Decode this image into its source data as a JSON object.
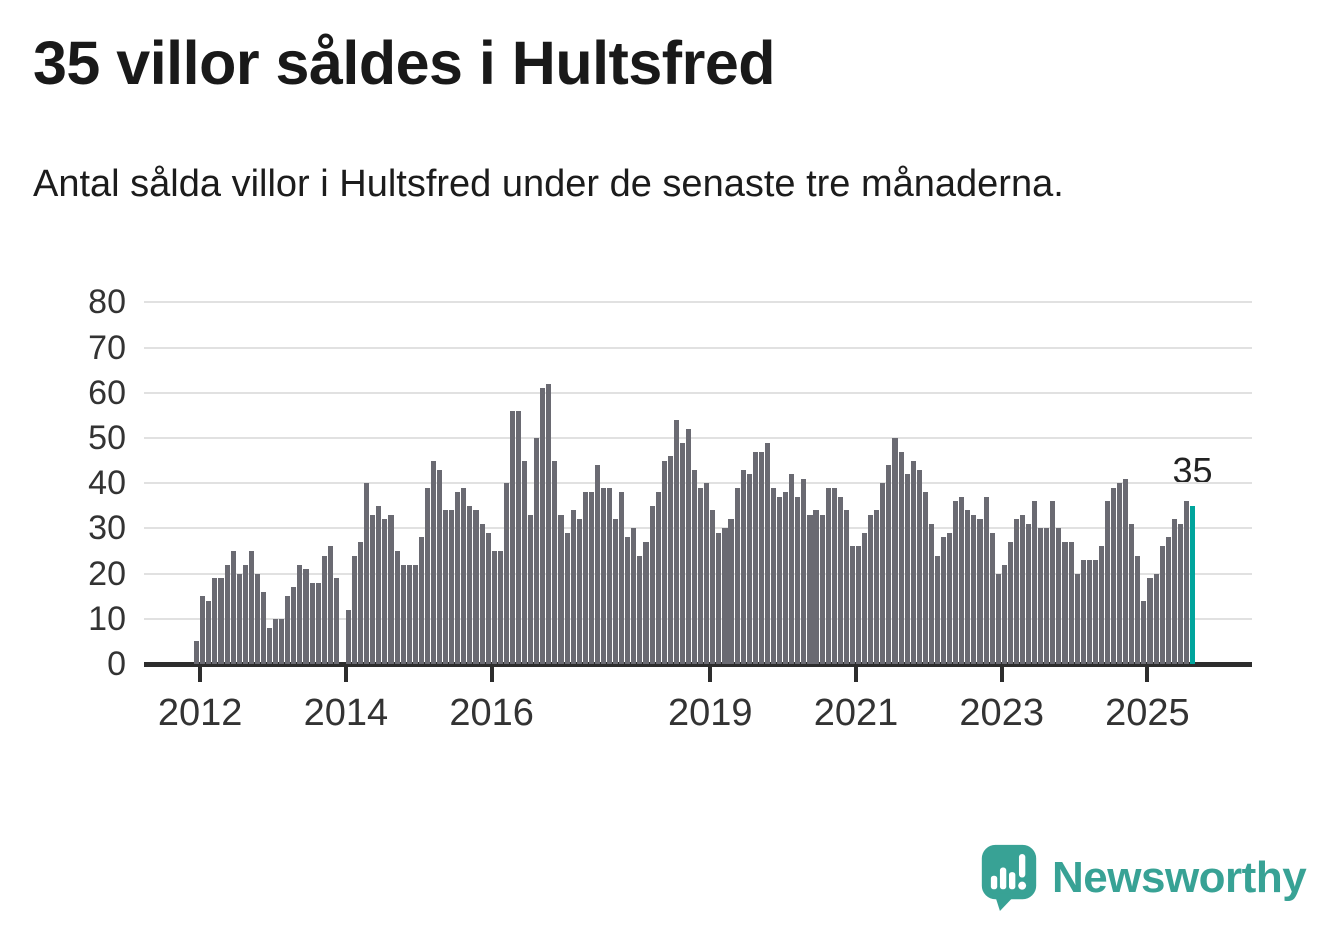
{
  "header": {
    "title": "35 villor såldes i Hultsfred",
    "subtitle": "Antal sålda villor i Hultsfred under de senaste tre månaderna."
  },
  "annotation": {
    "last_value_label": "35"
  },
  "branding": {
    "logo_text": "Newsworthy",
    "logo_color": "#38a295"
  },
  "colors": {
    "bar": "#6a6a72",
    "highlight": "#00a49c",
    "gridline": "#e1e1e1",
    "axis": "#2d2d2d",
    "text": "#1c1c1c"
  },
  "chart_data": {
    "type": "bar",
    "title": "35 villor såldes i Hultsfred",
    "subtitle": "Antal sålda villor i Hultsfred under de senaste tre månaderna.",
    "xlabel": "",
    "ylabel": "",
    "ylim": [
      0,
      80
    ],
    "grid": true,
    "legend_position": "none",
    "frequency": "monthly",
    "start_month": "2012-01",
    "x_tick_labels": [
      "2012",
      "2014",
      "2016",
      "2019",
      "2021",
      "2023",
      "2025"
    ],
    "x_tick_month_index": [
      0,
      24,
      48,
      84,
      108,
      132,
      156
    ],
    "y_ticks": [
      0,
      10,
      20,
      30,
      40,
      50,
      60,
      70,
      80
    ],
    "highlight_last_bar": true,
    "last_bar_value": 35,
    "values": [
      5,
      15,
      14,
      19,
      19,
      22,
      25,
      20,
      22,
      25,
      20,
      16,
      8,
      10,
      10,
      15,
      17,
      22,
      21,
      18,
      18,
      24,
      26,
      19,
      0,
      12,
      24,
      27,
      40,
      33,
      35,
      32,
      33,
      25,
      22,
      22,
      22,
      28,
      39,
      45,
      43,
      34,
      34,
      38,
      39,
      35,
      34,
      31,
      29,
      25,
      25,
      40,
      56,
      56,
      45,
      33,
      50,
      61,
      62,
      45,
      33,
      29,
      34,
      32,
      38,
      38,
      44,
      39,
      39,
      32,
      38,
      28,
      30,
      24,
      27,
      35,
      38,
      45,
      46,
      54,
      49,
      52,
      43,
      39,
      40,
      34,
      29,
      30,
      32,
      39,
      43,
      42,
      47,
      47,
      49,
      39,
      37,
      38,
      42,
      37,
      41,
      33,
      34,
      33,
      39,
      39,
      37,
      34,
      26,
      26,
      29,
      33,
      34,
      40,
      44,
      50,
      47,
      42,
      45,
      43,
      38,
      31,
      24,
      28,
      29,
      36,
      37,
      34,
      33,
      32,
      37,
      29,
      20,
      22,
      27,
      32,
      33,
      31,
      36,
      30,
      30,
      36,
      30,
      27,
      27,
      20,
      23,
      23,
      23,
      26,
      36,
      39,
      40,
      41,
      31,
      24,
      14,
      19,
      20,
      26,
      28,
      32,
      31,
      36,
      35
    ]
  }
}
